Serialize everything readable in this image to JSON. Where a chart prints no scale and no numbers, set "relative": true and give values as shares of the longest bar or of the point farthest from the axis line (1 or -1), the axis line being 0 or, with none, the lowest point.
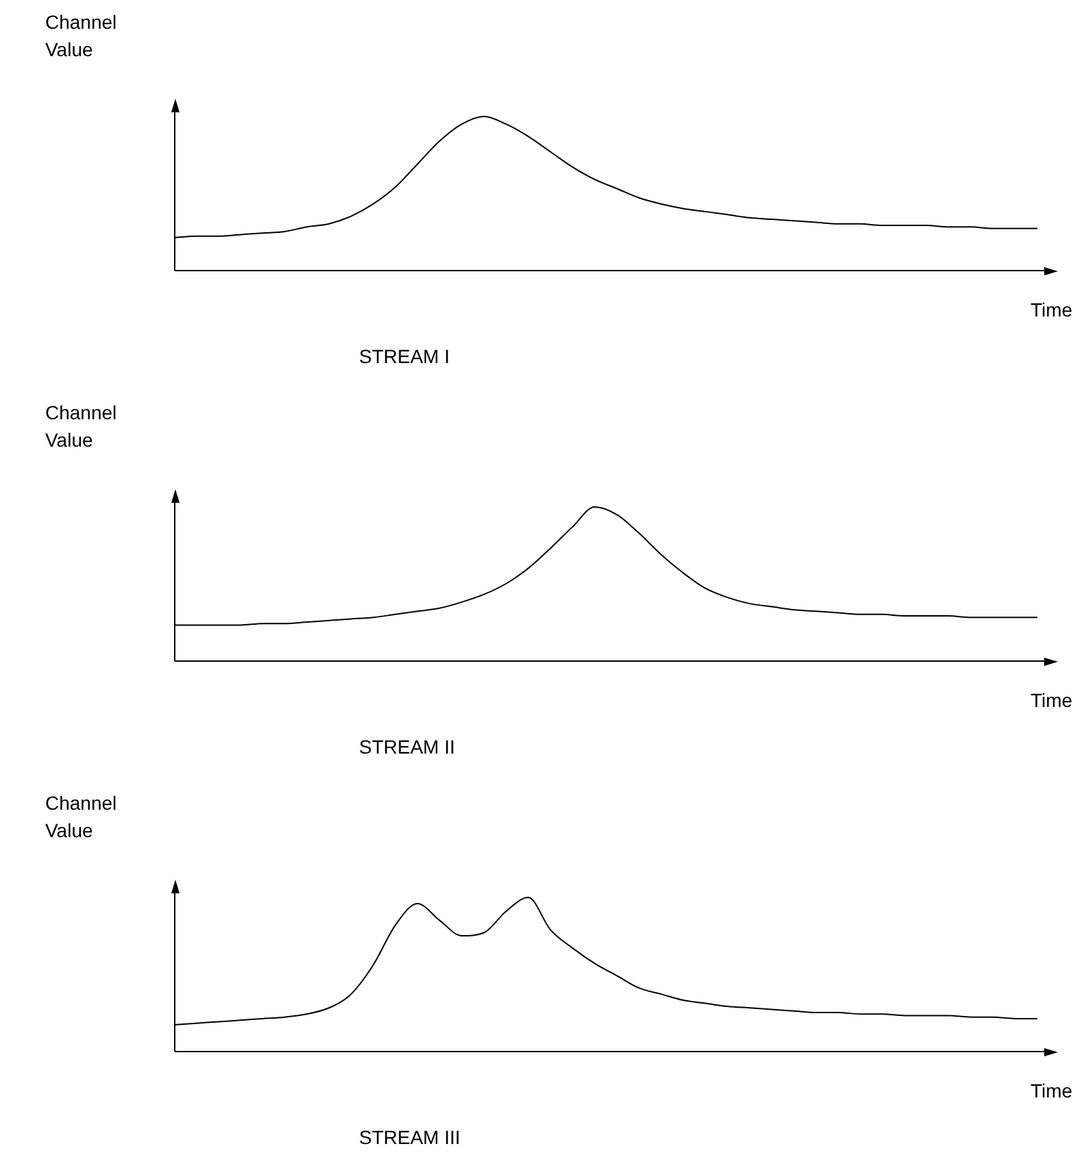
{
  "chart_data": [
    {
      "type": "line",
      "title": "STREAM I",
      "xlabel": "Time",
      "ylabel": "Channel Value",
      "relative": true,
      "categories": [
        null,
        null,
        null,
        null,
        null,
        null,
        null,
        null,
        null,
        null,
        null,
        null,
        null,
        null,
        null,
        null,
        null,
        null,
        null,
        null,
        null,
        null,
        null,
        null,
        null,
        null,
        null,
        null,
        null,
        null,
        null,
        null,
        null,
        null,
        null,
        null,
        null,
        null,
        null,
        null
      ],
      "series": [
        {
          "color": "#000000",
          "values": [
            0.21,
            0.22,
            0.22,
            0.23,
            0.24,
            0.25,
            0.28,
            0.3,
            0.35,
            0.43,
            0.54,
            0.69,
            0.84,
            0.95,
            1,
            0.95,
            0.87,
            0.77,
            0.67,
            0.59,
            0.53,
            0.47,
            0.43,
            0.4,
            0.38,
            0.36,
            0.34,
            0.33,
            0.32,
            0.31,
            0.3,
            0.3,
            0.29,
            0.29,
            0.29,
            0.28,
            0.28,
            0.27,
            0.27,
            0.27
          ]
        }
      ]
    },
    {
      "type": "line",
      "title": "STREAM II",
      "xlabel": "Time",
      "ylabel": "Channel Value",
      "relative": true,
      "categories": [
        null,
        null,
        null,
        null,
        null,
        null,
        null,
        null,
        null,
        null,
        null,
        null,
        null,
        null,
        null,
        null,
        null,
        null,
        null,
        null,
        null,
        null,
        null,
        null,
        null,
        null,
        null,
        null,
        null,
        null,
        null,
        null,
        null,
        null,
        null,
        null,
        null,
        null,
        null,
        null
      ],
      "series": [
        {
          "color": "#000000",
          "values": [
            0.23,
            0.23,
            0.23,
            0.23,
            0.24,
            0.24,
            0.25,
            0.26,
            0.27,
            0.28,
            0.3,
            0.32,
            0.34,
            0.38,
            0.43,
            0.5,
            0.6,
            0.73,
            0.87,
            1,
            0.95,
            0.83,
            0.69,
            0.57,
            0.47,
            0.41,
            0.37,
            0.35,
            0.33,
            0.32,
            0.31,
            0.3,
            0.3,
            0.29,
            0.29,
            0.29,
            0.28,
            0.28,
            0.28,
            0.28
          ]
        }
      ]
    },
    {
      "type": "line",
      "title": "STREAM III",
      "xlabel": "Time",
      "ylabel": "Channel Value",
      "relative": true,
      "categories": [
        null,
        null,
        null,
        null,
        null,
        null,
        null,
        null,
        null,
        null,
        null,
        null,
        null,
        null,
        null,
        null,
        null,
        null,
        null,
        null,
        null,
        null,
        null,
        null,
        null,
        null,
        null,
        null,
        null,
        null,
        null,
        null,
        null,
        null,
        null,
        null,
        null,
        null,
        null,
        null
      ],
      "series": [
        {
          "color": "#000000",
          "values": [
            0.17,
            0.18,
            0.19,
            0.2,
            0.21,
            0.22,
            0.24,
            0.28,
            0.37,
            0.56,
            0.82,
            0.96,
            0.85,
            0.75,
            0.77,
            0.91,
            1,
            0.79,
            0.67,
            0.57,
            0.49,
            0.41,
            0.37,
            0.33,
            0.31,
            0.29,
            0.28,
            0.27,
            0.26,
            0.25,
            0.25,
            0.24,
            0.24,
            0.23,
            0.23,
            0.23,
            0.22,
            0.22,
            0.21,
            0.21
          ]
        }
      ]
    }
  ]
}
